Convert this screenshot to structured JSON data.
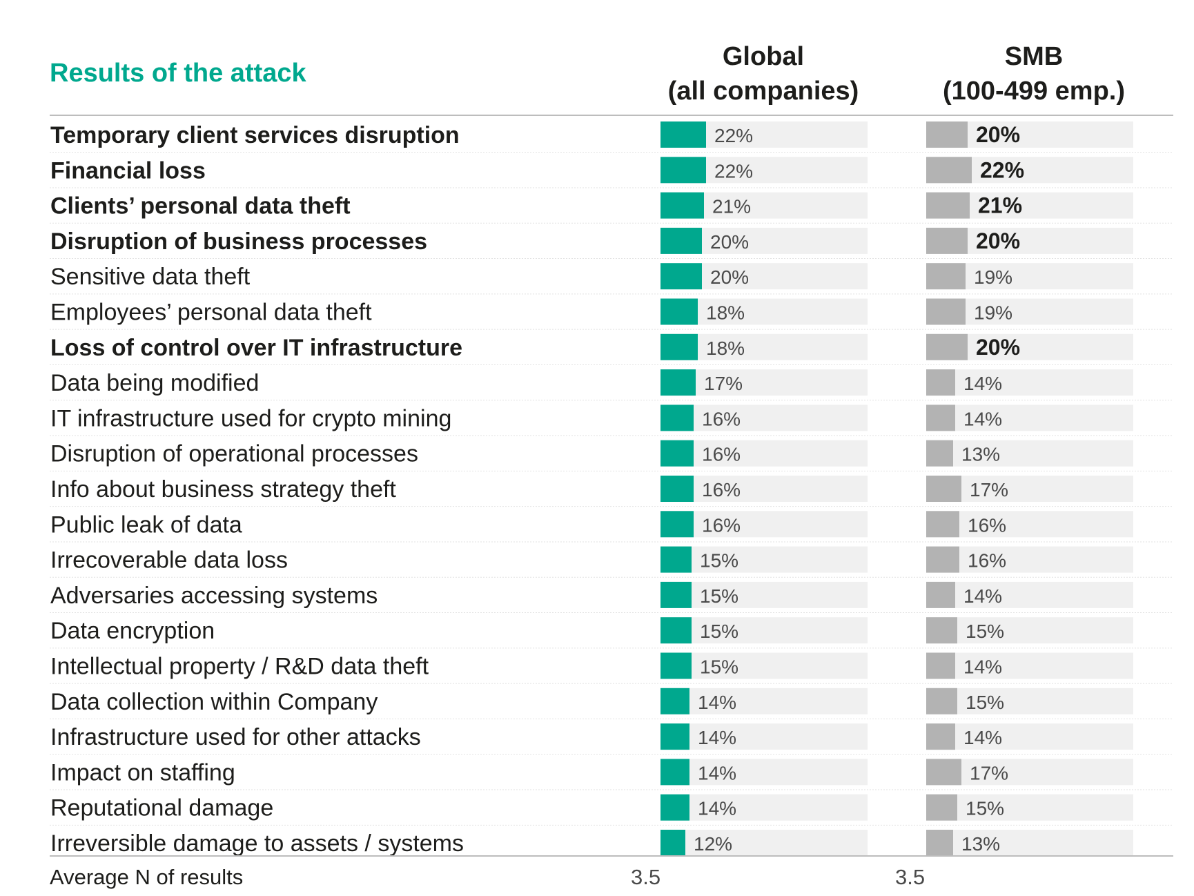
{
  "chart_data": {
    "type": "bar",
    "title": "Results of the attack",
    "columns": [
      {
        "name_line1": "Global",
        "name_line2": "(all companies)"
      },
      {
        "name_line1": "SMB",
        "name_line2": "(100-499 emp.)"
      }
    ],
    "value_suffix": "%",
    "xlim": [
      0,
      100
    ],
    "categories": [
      "Temporary client services disruption",
      "Financial loss",
      "Clients’ personal data theft",
      "Disruption of business processes",
      "Sensitive data theft",
      "Employees’ personal data theft",
      "Loss of control over IT infrastructure",
      "Data being modified",
      "IT infrastructure used for crypto mining",
      "Disruption of operational processes",
      "Info about business strategy theft",
      "Public leak of data",
      "Irrecoverable data loss",
      "Adversaries accessing systems",
      "Data encryption",
      "Intellectual property / R&D data theft",
      "Data collection within Company",
      "Infrastructure used for other attacks",
      "Impact on staffing",
      "Reputational damage",
      "Irreversible damage to assets / systems"
    ],
    "bold_categories": [
      true,
      true,
      true,
      true,
      false,
      false,
      true,
      false,
      false,
      false,
      false,
      false,
      false,
      false,
      false,
      false,
      false,
      false,
      false,
      false,
      false
    ],
    "series": [
      {
        "values": [
          22,
          22,
          21,
          20,
          20,
          18,
          18,
          17,
          16,
          16,
          16,
          16,
          15,
          15,
          15,
          15,
          14,
          14,
          14,
          14,
          12
        ],
        "bold": [
          false,
          false,
          false,
          false,
          false,
          false,
          false,
          false,
          false,
          false,
          false,
          false,
          false,
          false,
          false,
          false,
          false,
          false,
          false,
          false,
          false
        ],
        "color": "#00a88e"
      },
      {
        "values": [
          20,
          22,
          21,
          20,
          19,
          19,
          20,
          14,
          14,
          13,
          17,
          16,
          16,
          14,
          15,
          14,
          15,
          14,
          17,
          15,
          13
        ],
        "bold": [
          true,
          true,
          true,
          true,
          false,
          false,
          true,
          false,
          false,
          false,
          false,
          false,
          false,
          false,
          false,
          false,
          false,
          false,
          false,
          false,
          false
        ],
        "color": "#b3b3b3"
      }
    ],
    "footer": {
      "label": "Average N of results",
      "values": [
        "3.5",
        "3.5"
      ]
    },
    "colors": {
      "title": "#00a88e",
      "track": "#f0f0f0",
      "text": "#1d1d1b",
      "value_text": "#4a4a4a",
      "separator": "#bdbdbd",
      "row_divider": "#e2e2e2"
    }
  }
}
